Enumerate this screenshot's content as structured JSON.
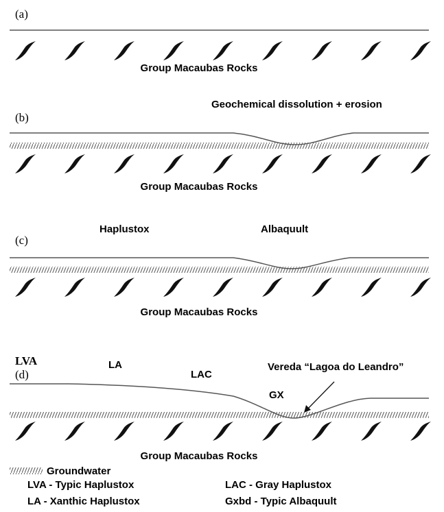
{
  "panels": [
    {
      "label": "(a)",
      "rock_label": "Group Macaubas Rocks",
      "annotations": []
    },
    {
      "label": "(b)",
      "rock_label": "Group Macaubas Rocks",
      "annotations": [
        "Geochemical dissolution + erosion"
      ]
    },
    {
      "label": "(c)",
      "rock_label": "Group Macaubas Rocks",
      "annotations": [
        "Haplustox",
        "Albaquult"
      ]
    },
    {
      "label": "(d)",
      "rock_label": "Group Macaubas Rocks",
      "annotations": [
        "LVA",
        "LA",
        "LAC",
        "Vereda “Lagoa do Leandro”",
        "GX"
      ]
    }
  ],
  "legend": {
    "groundwater": "Groundwater",
    "entries": [
      "LVA - Typic Haplustox",
      "LAC - Gray Haplustox",
      "LA - Xanthic Haplustox",
      "Gxbd - Typic Albaquult"
    ]
  }
}
